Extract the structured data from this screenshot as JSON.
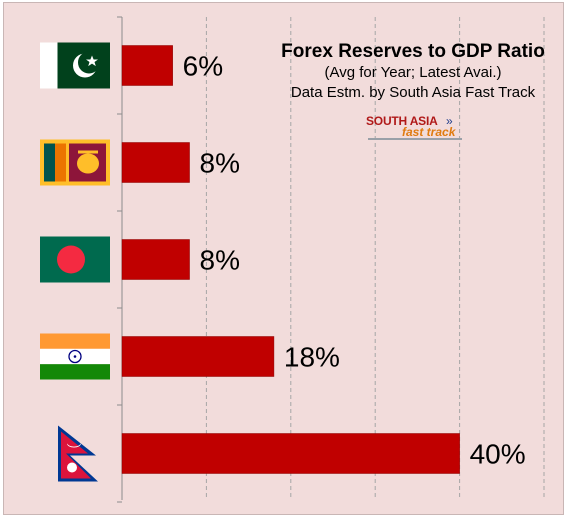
{
  "chart_data": {
    "type": "bar",
    "orientation": "horizontal",
    "title": "Forex Reserves to GDP Ratio",
    "subtitle": "(Avg for Year; Latest Avai.)",
    "credit": "Data Estm. by South Asia Fast Track",
    "categories": [
      "Pakistan",
      "Sri Lanka",
      "Bangladesh",
      "India",
      "Nepal"
    ],
    "values": [
      6,
      8,
      8,
      18,
      40
    ],
    "value_labels": [
      "6%",
      "8%",
      "8%",
      "18%",
      "40%"
    ],
    "xlim": [
      0,
      50
    ],
    "grid": "vertical dashed",
    "bar_color": "#c00000",
    "category_axis_labels": "flag images"
  },
  "logo": {
    "line1": "SOUTH ASIA",
    "arrows": "»",
    "line2": "fast track"
  },
  "flags": [
    "pakistan-flag",
    "sri-lanka-flag",
    "bangladesh-flag",
    "india-flag",
    "nepal-flag"
  ],
  "colors": {
    "background": "#f2dcdb",
    "bar": "#c00000",
    "pakistan_green": "#01411c",
    "bangladesh_green": "#006a4e",
    "bangladesh_red": "#f42a41",
    "india_saffron": "#ff9933",
    "india_green": "#138808",
    "nepal_red": "#dc143c",
    "nepal_blue": "#003893",
    "srilanka_maroon": "#8d153a",
    "srilanka_gold": "#ffbe29"
  }
}
